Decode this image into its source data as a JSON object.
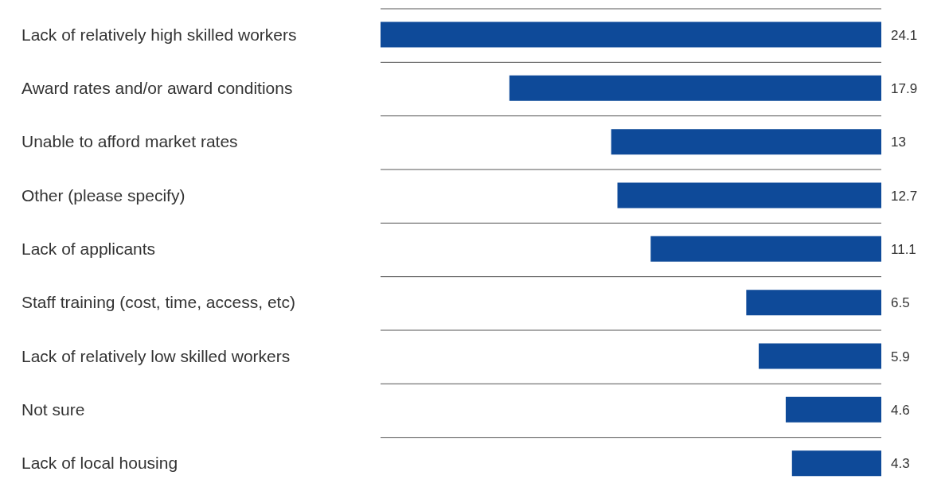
{
  "chart_data": {
    "type": "bar",
    "orientation": "horizontal",
    "categories": [
      "Lack of relatively high skilled workers",
      "Award rates and/or award conditions",
      "Unable to afford market rates",
      "Other (please specify)",
      "Lack of applicants",
      "Staff training (cost, time, access, etc)",
      "Lack of relatively low skilled workers",
      "Not sure",
      "Lack of local housing"
    ],
    "values": [
      24.1,
      17.9,
      13,
      12.7,
      11.1,
      6.5,
      5.9,
      4.6,
      4.3
    ],
    "color": "#0e4a99",
    "data_labels": true,
    "grid": "y"
  }
}
